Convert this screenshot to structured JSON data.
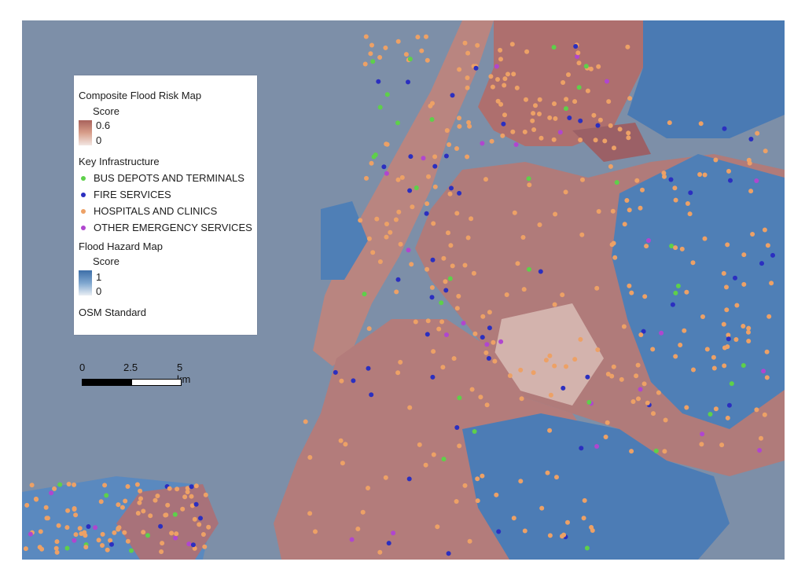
{
  "legend": {
    "risk_title": "Composite Flood Risk Map",
    "risk_score_label": "Score",
    "risk_max": "0.6",
    "risk_min": "0",
    "risk_ramp_colors": [
      "#a9625c",
      "#d89e8a",
      "#f2e6e2"
    ],
    "infra_title": "Key Infrastructure",
    "infra_items": [
      {
        "label": "BUS DEPOTS AND TERMINALS",
        "color": "#5ed04a"
      },
      {
        "label": "FIRE SERVICES",
        "color": "#2b2fc0"
      },
      {
        "label": "HOSPITALS AND CLINICS",
        "color": "#eda166"
      },
      {
        "label": "OTHER EMERGENCY SERVICES",
        "color": "#b046cf"
      }
    ],
    "hazard_title": "Flood Hazard Map",
    "hazard_score_label": "Score",
    "hazard_max": "1",
    "hazard_min": "0",
    "hazard_ramp_colors": [
      "#3d6fa8",
      "#7ea6cf",
      "#e9eef4"
    ],
    "basemap_label": "OSM Standard"
  },
  "scalebar": {
    "labels": [
      "0",
      "2.5",
      "5 km"
    ]
  },
  "map_colors": {
    "water": "#7d8fa8",
    "risk_high": "#9c5a62",
    "risk_mid": "#bf8680",
    "risk_low": "#d8b8ae",
    "hazard_high": "#3b6ea8",
    "hazard_mid": "#6f9bc9",
    "hazard_low": "#c9dbee"
  }
}
